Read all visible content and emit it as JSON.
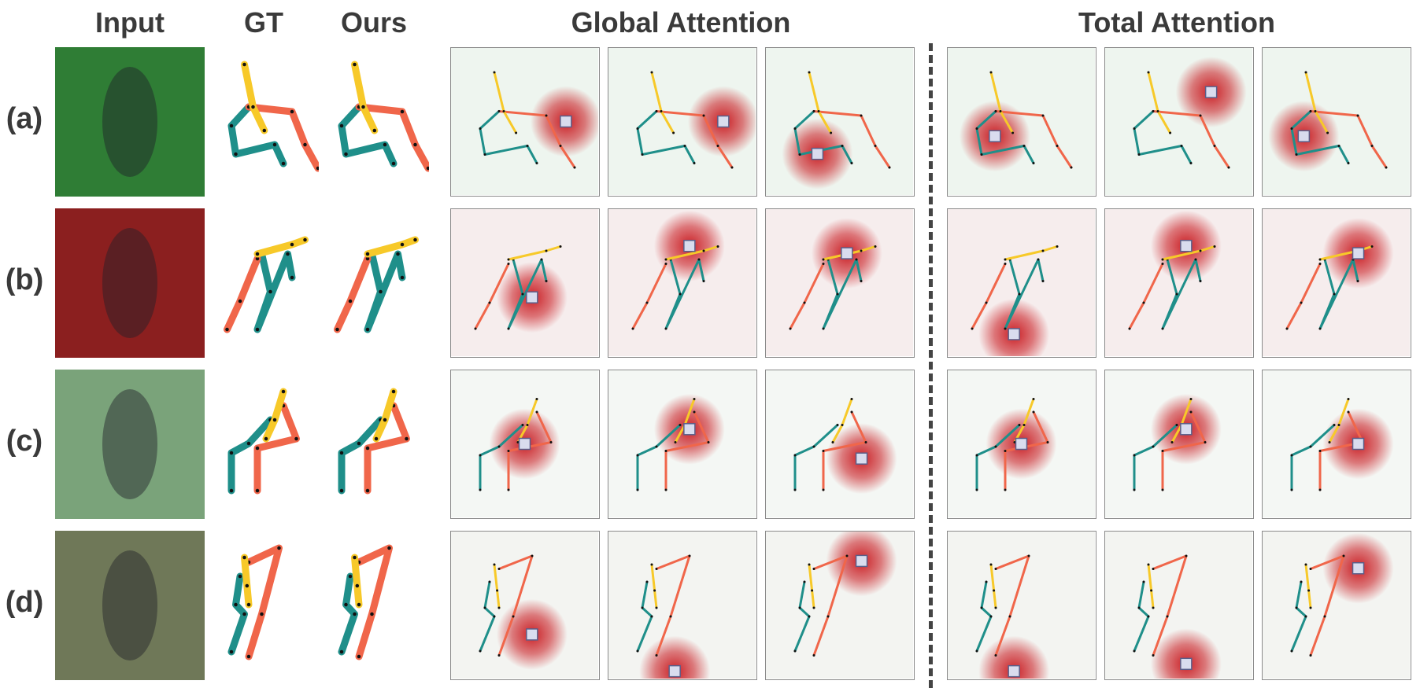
{
  "headers": {
    "input": "Input",
    "gt": "GT",
    "ours": "Ours",
    "global_attention": "Global Attention",
    "total_attention": "Total Attention"
  },
  "rows": [
    {
      "label": "(a)",
      "bg": "#2f7d35"
    },
    {
      "label": "(b)",
      "bg": "#8b1f1f"
    },
    {
      "label": "(c)",
      "bg": "#7aa37a"
    },
    {
      "label": "(d)",
      "bg": "#6f7858"
    }
  ],
  "colors": {
    "left_limb": "#f0664a",
    "right_limb": "#1f8f8a",
    "spine": "#f7c929",
    "heat": "#c8141a",
    "frame_border": "#8a8a8a",
    "query_box": "#5a5f8a"
  }
}
